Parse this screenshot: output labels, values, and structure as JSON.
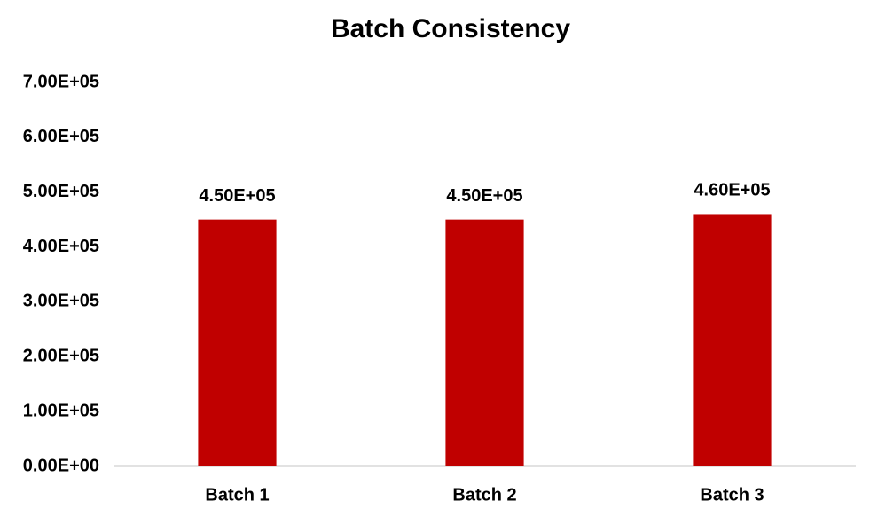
{
  "chart_data": {
    "type": "bar",
    "title": "Batch Consistency",
    "categories": [
      "Batch 1",
      "Batch 2",
      "Batch 3"
    ],
    "values": [
      450000,
      450000,
      460000
    ],
    "value_labels": [
      "4.50E+05",
      "4.50E+05",
      "4.60E+05"
    ],
    "color": "#c00000",
    "ylim": [
      0,
      700000
    ],
    "yticks": [
      {
        "value": 0,
        "label": "0.00E+00"
      },
      {
        "value": 100000,
        "label": "1.00E+05"
      },
      {
        "value": 200000,
        "label": "2.00E+05"
      },
      {
        "value": 300000,
        "label": "3.00E+05"
      },
      {
        "value": 400000,
        "label": "4.00E+05"
      },
      {
        "value": 500000,
        "label": "5.00E+05"
      },
      {
        "value": 600000,
        "label": "6.00E+05"
      },
      {
        "value": 700000,
        "label": "7.00E+05"
      }
    ],
    "grid": false
  }
}
